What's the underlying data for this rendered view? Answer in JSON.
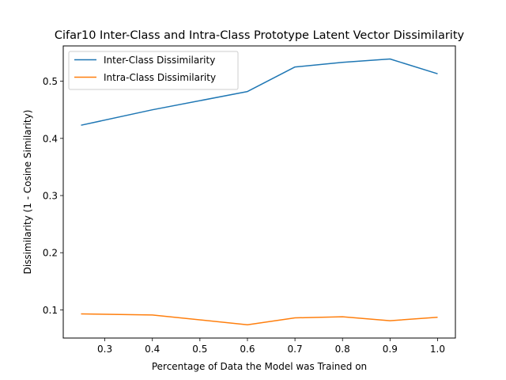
{
  "chart_data": {
    "type": "line",
    "title": "Cifar10 Inter-Class and Intra-Class Prototype Latent Vector Dissimilarity",
    "xlabel": "Percentage of Data the Model was Trained on",
    "ylabel": "Dissimilarity (1 - Cosine Similarity)",
    "x": [
      0.25,
      0.4,
      0.6,
      0.7,
      0.8,
      0.9,
      1.0
    ],
    "xlim": [
      0.2125,
      1.0375
    ],
    "ylim": [
      0.0507,
      0.5618
    ],
    "xticks": [
      0.3,
      0.4,
      0.5,
      0.6,
      0.7,
      0.8,
      0.9,
      1.0
    ],
    "xtick_labels": [
      "0.3",
      "0.4",
      "0.5",
      "0.6",
      "0.7",
      "0.8",
      "0.9",
      "1.0"
    ],
    "yticks": [
      0.1,
      0.2,
      0.3,
      0.4,
      0.5
    ],
    "ytick_labels": [
      "0.1",
      "0.2",
      "0.3",
      "0.4",
      "0.5"
    ],
    "grid": false,
    "legend_position": "top-left",
    "series": [
      {
        "name": "Inter-Class Dissimilarity",
        "color": "#1f77b4",
        "values": [
          0.423,
          0.45,
          0.482,
          0.525,
          0.533,
          0.539,
          0.513
        ]
      },
      {
        "name": "Intra-Class Dissimilarity",
        "color": "#ff7f0e",
        "values": [
          0.093,
          0.091,
          0.074,
          0.086,
          0.088,
          0.081,
          0.087
        ]
      }
    ]
  }
}
